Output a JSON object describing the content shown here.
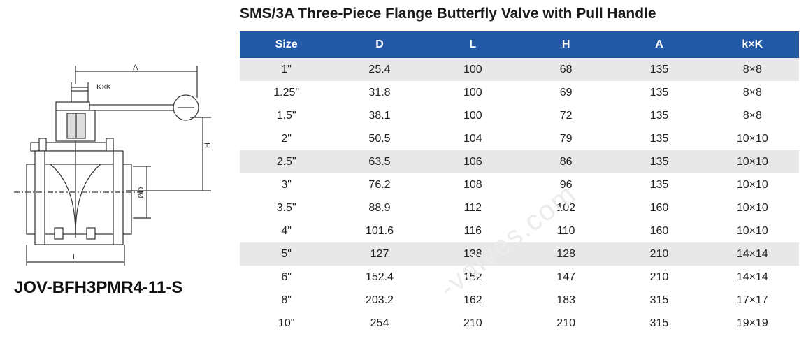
{
  "title": "SMS/3A Three-Piece Flange Butterfly Valve with Pull Handle",
  "model": "JOV-BFH3PMR4-11-S",
  "watermark": "-valves.com",
  "diagram_labels": {
    "a": "A",
    "kk": "K×K",
    "h": "H",
    "d": "ØD",
    "l": "L"
  },
  "table": {
    "headers": [
      "Size",
      "D",
      "L",
      "H",
      "A",
      "k×K"
    ],
    "rows": [
      [
        "1\"",
        "25.4",
        "100",
        "68",
        "135",
        "8×8"
      ],
      [
        "1.25\"",
        "31.8",
        "100",
        "69",
        "135",
        "8×8"
      ],
      [
        "1.5\"",
        "38.1",
        "100",
        "72",
        "135",
        "8×8"
      ],
      [
        "2\"",
        "50.5",
        "104",
        "79",
        "135",
        "10×10"
      ],
      [
        "2.5\"",
        "63.5",
        "106",
        "86",
        "135",
        "10×10"
      ],
      [
        "3\"",
        "76.2",
        "108",
        "96",
        "135",
        "10×10"
      ],
      [
        "3.5\"",
        "88.9",
        "112",
        "102",
        "160",
        "10×10"
      ],
      [
        "4\"",
        "101.6",
        "116",
        "110",
        "160",
        "10×10"
      ],
      [
        "5\"",
        "127",
        "138",
        "128",
        "210",
        "14×14"
      ],
      [
        "6\"",
        "152.4",
        "152",
        "147",
        "210",
        "14×14"
      ],
      [
        "8\"",
        "203.2",
        "162",
        "183",
        "315",
        "17×17"
      ],
      [
        "10\"",
        "254",
        "210",
        "210",
        "315",
        "19×19"
      ]
    ]
  },
  "colors": {
    "header_bg": "#2358a6",
    "row_shade": "#e8e8e8"
  }
}
